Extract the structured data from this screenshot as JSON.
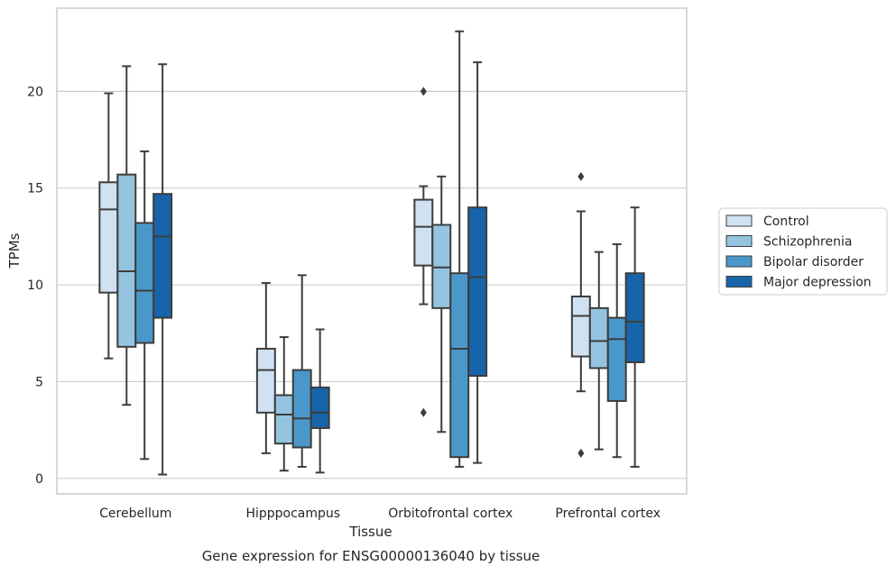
{
  "chart_data": {
    "type": "box",
    "title": "",
    "caption": "Gene expression for ENSG00000136040 by tissue",
    "xlabel": "Tissue",
    "ylabel": "TPMs",
    "ylim": [
      -0.8,
      24.3
    ],
    "yticks": [
      0,
      5,
      10,
      15,
      20
    ],
    "grid": "horizontal",
    "legend_position": "right",
    "categories": [
      "Cerebellum",
      "Hipppocampus",
      "Orbitofrontal cortex",
      "Prefrontal cortex"
    ],
    "series": [
      {
        "name": "Control",
        "color": "#d0e1f2",
        "boxes": [
          {
            "whisker_low": 6.2,
            "q1": 9.6,
            "median": 13.9,
            "q3": 15.3,
            "whisker_high": 19.9,
            "outliers": []
          },
          {
            "whisker_low": 1.3,
            "q1": 3.4,
            "median": 5.6,
            "q3": 6.7,
            "whisker_high": 10.1,
            "outliers": []
          },
          {
            "whisker_low": 9.0,
            "q1": 11.0,
            "median": 13.0,
            "q3": 14.4,
            "whisker_high": 15.1,
            "outliers": [
              20.0,
              3.4
            ]
          },
          {
            "whisker_low": 4.5,
            "q1": 6.3,
            "median": 8.4,
            "q3": 9.4,
            "whisker_high": 13.8,
            "outliers": [
              15.6,
              1.3
            ]
          }
        ]
      },
      {
        "name": "Schizophrenia",
        "color": "#94c4df",
        "boxes": [
          {
            "whisker_low": 3.8,
            "q1": 6.8,
            "median": 10.7,
            "q3": 15.7,
            "whisker_high": 21.3,
            "outliers": []
          },
          {
            "whisker_low": 0.4,
            "q1": 1.8,
            "median": 3.3,
            "q3": 4.3,
            "whisker_high": 7.3,
            "outliers": []
          },
          {
            "whisker_low": 2.4,
            "q1": 8.8,
            "median": 10.9,
            "q3": 13.1,
            "whisker_high": 15.6,
            "outliers": []
          },
          {
            "whisker_low": 1.5,
            "q1": 5.7,
            "median": 7.1,
            "q3": 8.8,
            "whisker_high": 11.7,
            "outliers": []
          }
        ]
      },
      {
        "name": "Bipolar disorder",
        "color": "#4a98c9",
        "boxes": [
          {
            "whisker_low": 1.0,
            "q1": 7.0,
            "median": 9.7,
            "q3": 13.2,
            "whisker_high": 16.9,
            "outliers": []
          },
          {
            "whisker_low": 0.6,
            "q1": 1.6,
            "median": 3.1,
            "q3": 5.6,
            "whisker_high": 10.5,
            "outliers": []
          },
          {
            "whisker_low": 0.6,
            "q1": 1.1,
            "median": 6.7,
            "q3": 10.6,
            "whisker_high": 23.1,
            "outliers": []
          },
          {
            "whisker_low": 1.1,
            "q1": 4.0,
            "median": 7.2,
            "q3": 8.3,
            "whisker_high": 12.1,
            "outliers": []
          }
        ]
      },
      {
        "name": "Major depression",
        "color": "#1764ab",
        "boxes": [
          {
            "whisker_low": 0.2,
            "q1": 8.3,
            "median": 12.5,
            "q3": 14.7,
            "whisker_high": 21.4,
            "outliers": []
          },
          {
            "whisker_low": 0.3,
            "q1": 2.6,
            "median": 3.4,
            "q3": 4.7,
            "whisker_high": 7.7,
            "outliers": []
          },
          {
            "whisker_low": 0.8,
            "q1": 5.3,
            "median": 10.4,
            "q3": 14.0,
            "whisker_high": 21.5,
            "outliers": []
          },
          {
            "whisker_low": 0.6,
            "q1": 6.0,
            "median": 8.1,
            "q3": 10.6,
            "whisker_high": 14.0,
            "outliers": []
          }
        ]
      }
    ]
  }
}
